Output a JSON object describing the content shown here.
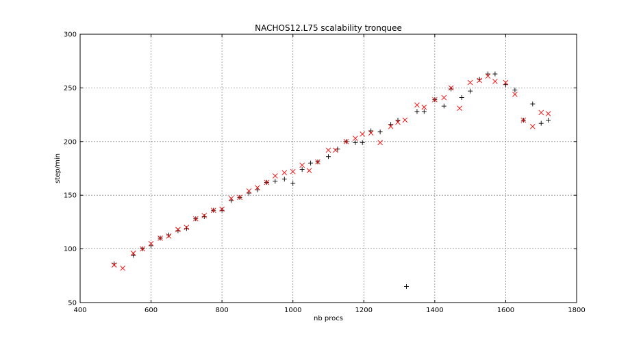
{
  "chart_data": {
    "type": "scatter",
    "title": "NACHOS12.L75 scalability tronquee",
    "xlabel": "nb procs",
    "ylabel": "step/min",
    "xlim": [
      400,
      1800
    ],
    "ylim": [
      50,
      300
    ],
    "xticks": [
      400,
      600,
      800,
      1000,
      1200,
      1400,
      1600,
      1800
    ],
    "yticks": [
      50,
      100,
      150,
      200,
      250,
      300
    ],
    "grid": true,
    "series": [
      {
        "marker": "plus",
        "color": "#000000",
        "points": [
          [
            496,
            86
          ],
          [
            550,
            94
          ],
          [
            576,
            100
          ],
          [
            600,
            103
          ],
          [
            626,
            110
          ],
          [
            650,
            113
          ],
          [
            676,
            117
          ],
          [
            700,
            119
          ],
          [
            726,
            128
          ],
          [
            750,
            130
          ],
          [
            776,
            136
          ],
          [
            800,
            136
          ],
          [
            826,
            145
          ],
          [
            850,
            148
          ],
          [
            876,
            152
          ],
          [
            900,
            155
          ],
          [
            926,
            162
          ],
          [
            950,
            163
          ],
          [
            976,
            165
          ],
          [
            1000,
            161
          ],
          [
            1026,
            174
          ],
          [
            1050,
            180
          ],
          [
            1070,
            181
          ],
          [
            1100,
            186
          ],
          [
            1126,
            193
          ],
          [
            1150,
            200
          ],
          [
            1176,
            199
          ],
          [
            1196,
            199
          ],
          [
            1220,
            210
          ],
          [
            1246,
            209
          ],
          [
            1276,
            216
          ],
          [
            1296,
            220
          ],
          [
            1320,
            65
          ],
          [
            1350,
            228
          ],
          [
            1370,
            228
          ],
          [
            1400,
            239
          ],
          [
            1426,
            233
          ],
          [
            1446,
            249
          ],
          [
            1476,
            241
          ],
          [
            1500,
            247
          ],
          [
            1526,
            258
          ],
          [
            1550,
            263
          ],
          [
            1570,
            263
          ],
          [
            1600,
            253
          ],
          [
            1626,
            248
          ],
          [
            1650,
            220
          ],
          [
            1676,
            235
          ],
          [
            1700,
            217
          ],
          [
            1720,
            220
          ]
        ]
      },
      {
        "marker": "x",
        "color": "#ff0000",
        "points": [
          [
            496,
            85
          ],
          [
            520,
            82
          ],
          [
            550,
            96
          ],
          [
            576,
            100
          ],
          [
            600,
            105
          ],
          [
            626,
            110
          ],
          [
            650,
            112
          ],
          [
            676,
            118
          ],
          [
            700,
            120
          ],
          [
            726,
            128
          ],
          [
            750,
            131
          ],
          [
            776,
            136
          ],
          [
            800,
            137
          ],
          [
            826,
            147
          ],
          [
            850,
            148
          ],
          [
            876,
            154
          ],
          [
            900,
            157
          ],
          [
            926,
            162
          ],
          [
            950,
            168
          ],
          [
            976,
            171
          ],
          [
            1000,
            172
          ],
          [
            1026,
            178
          ],
          [
            1046,
            173
          ],
          [
            1070,
            181
          ],
          [
            1100,
            192
          ],
          [
            1120,
            192
          ],
          [
            1150,
            200
          ],
          [
            1176,
            203
          ],
          [
            1196,
            207
          ],
          [
            1220,
            208
          ],
          [
            1246,
            199
          ],
          [
            1276,
            214
          ],
          [
            1296,
            218
          ],
          [
            1316,
            220
          ],
          [
            1350,
            234
          ],
          [
            1370,
            232
          ],
          [
            1400,
            239
          ],
          [
            1426,
            241
          ],
          [
            1446,
            250
          ],
          [
            1470,
            231
          ],
          [
            1500,
            255
          ],
          [
            1526,
            257
          ],
          [
            1550,
            261
          ],
          [
            1570,
            256
          ],
          [
            1600,
            255
          ],
          [
            1626,
            244
          ],
          [
            1650,
            220
          ],
          [
            1676,
            214
          ],
          [
            1700,
            227
          ],
          [
            1720,
            226
          ]
        ]
      }
    ]
  }
}
